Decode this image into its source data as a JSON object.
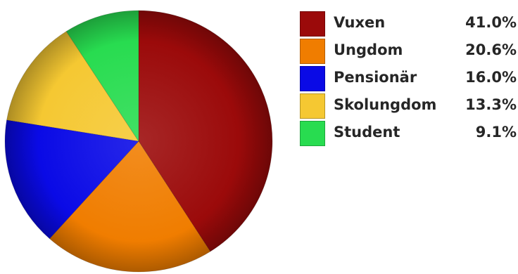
{
  "chart_data": {
    "type": "pie",
    "categories": [
      "Vuxen",
      "Ungdom",
      "Pensionär",
      "Skolungdom",
      "Student"
    ],
    "values": [
      41.0,
      20.6,
      16.0,
      13.3,
      9.1
    ],
    "value_labels": [
      "41.0%",
      "20.6%",
      "16.0%",
      "13.3%",
      "9.1%"
    ],
    "colors": [
      "#9b0a0a",
      "#f07d00",
      "#0a0ae6",
      "#f5c832",
      "#28dc50"
    ],
    "legend": "right",
    "start_angle_deg": 0,
    "direction": "clockwise"
  }
}
